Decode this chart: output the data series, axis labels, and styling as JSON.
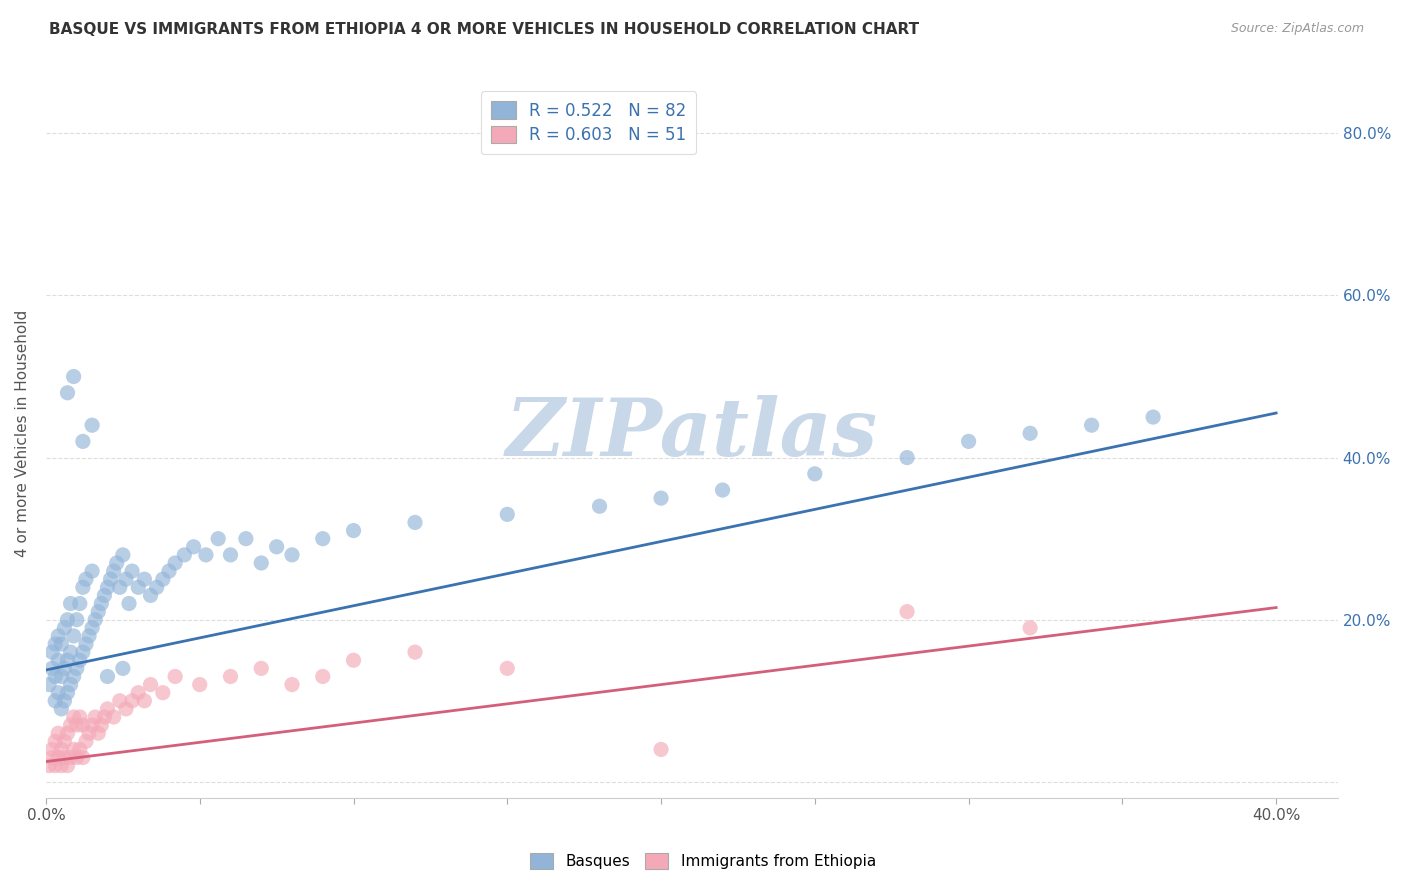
{
  "title": "BASQUE VS IMMIGRANTS FROM ETHIOPIA 4 OR MORE VEHICLES IN HOUSEHOLD CORRELATION CHART",
  "source": "Source: ZipAtlas.com",
  "ylabel": "4 or more Vehicles in Household",
  "xlim": [
    0.0,
    0.42
  ],
  "ylim": [
    -0.02,
    0.88
  ],
  "right_yticks": [
    0.0,
    0.2,
    0.4,
    0.6,
    0.8
  ],
  "right_yticklabels": [
    "",
    "20.0%",
    "40.0%",
    "60.0%",
    "80.0%"
  ],
  "xticks": [
    0.0,
    0.4
  ],
  "xticklabels": [
    "0.0%",
    "40.0%"
  ],
  "legend_r1": "0.522",
  "legend_n1": "82",
  "legend_r2": "0.603",
  "legend_n2": "51",
  "color_blue": "#92B4D8",
  "color_pink": "#F4A9B8",
  "color_blue_line": "#3B72B0",
  "color_pink_line": "#D45F7A",
  "blue_scatter_x": [
    0.001,
    0.002,
    0.002,
    0.003,
    0.003,
    0.003,
    0.004,
    0.004,
    0.004,
    0.005,
    0.005,
    0.005,
    0.006,
    0.006,
    0.006,
    0.007,
    0.007,
    0.007,
    0.008,
    0.008,
    0.008,
    0.009,
    0.009,
    0.01,
    0.01,
    0.011,
    0.011,
    0.012,
    0.012,
    0.013,
    0.013,
    0.014,
    0.015,
    0.015,
    0.016,
    0.017,
    0.018,
    0.019,
    0.02,
    0.021,
    0.022,
    0.023,
    0.024,
    0.025,
    0.026,
    0.027,
    0.028,
    0.03,
    0.032,
    0.034,
    0.036,
    0.038,
    0.04,
    0.042,
    0.045,
    0.048,
    0.052,
    0.056,
    0.06,
    0.065,
    0.07,
    0.075,
    0.08,
    0.09,
    0.1,
    0.12,
    0.15,
    0.18,
    0.2,
    0.22,
    0.25,
    0.28,
    0.3,
    0.32,
    0.34,
    0.36,
    0.007,
    0.009,
    0.012,
    0.015,
    0.02,
    0.025
  ],
  "blue_scatter_y": [
    0.12,
    0.14,
    0.16,
    0.1,
    0.13,
    0.17,
    0.11,
    0.15,
    0.18,
    0.09,
    0.13,
    0.17,
    0.1,
    0.14,
    0.19,
    0.11,
    0.15,
    0.2,
    0.12,
    0.16,
    0.22,
    0.13,
    0.18,
    0.14,
    0.2,
    0.15,
    0.22,
    0.16,
    0.24,
    0.17,
    0.25,
    0.18,
    0.19,
    0.26,
    0.2,
    0.21,
    0.22,
    0.23,
    0.24,
    0.25,
    0.26,
    0.27,
    0.24,
    0.28,
    0.25,
    0.22,
    0.26,
    0.24,
    0.25,
    0.23,
    0.24,
    0.25,
    0.26,
    0.27,
    0.28,
    0.29,
    0.28,
    0.3,
    0.28,
    0.3,
    0.27,
    0.29,
    0.28,
    0.3,
    0.31,
    0.32,
    0.33,
    0.34,
    0.35,
    0.36,
    0.38,
    0.4,
    0.42,
    0.43,
    0.44,
    0.45,
    0.48,
    0.5,
    0.42,
    0.44,
    0.13,
    0.14
  ],
  "pink_scatter_x": [
    0.001,
    0.002,
    0.002,
    0.003,
    0.003,
    0.004,
    0.004,
    0.005,
    0.005,
    0.006,
    0.006,
    0.007,
    0.007,
    0.008,
    0.008,
    0.009,
    0.009,
    0.01,
    0.01,
    0.011,
    0.011,
    0.012,
    0.012,
    0.013,
    0.014,
    0.015,
    0.016,
    0.017,
    0.018,
    0.019,
    0.02,
    0.022,
    0.024,
    0.026,
    0.028,
    0.03,
    0.032,
    0.034,
    0.038,
    0.042,
    0.05,
    0.06,
    0.07,
    0.08,
    0.09,
    0.1,
    0.12,
    0.15,
    0.2,
    0.28,
    0.32
  ],
  "pink_scatter_y": [
    0.02,
    0.03,
    0.04,
    0.02,
    0.05,
    0.03,
    0.06,
    0.02,
    0.04,
    0.03,
    0.05,
    0.02,
    0.06,
    0.03,
    0.07,
    0.04,
    0.08,
    0.03,
    0.07,
    0.04,
    0.08,
    0.03,
    0.07,
    0.05,
    0.06,
    0.07,
    0.08,
    0.06,
    0.07,
    0.08,
    0.09,
    0.08,
    0.1,
    0.09,
    0.1,
    0.11,
    0.1,
    0.12,
    0.11,
    0.13,
    0.12,
    0.13,
    0.14,
    0.12,
    0.13,
    0.15,
    0.16,
    0.14,
    0.04,
    0.21,
    0.19
  ],
  "blue_trend": [
    0.0,
    0.4,
    0.138,
    0.455
  ],
  "pink_trend": [
    0.0,
    0.4,
    0.025,
    0.215
  ],
  "watermark": "ZIPatlas",
  "watermark_color": "#C8D8E8",
  "grid_color": "#DDDDDD",
  "background_color": "#FFFFFF",
  "title_color": "#333333",
  "source_color": "#999999",
  "axis_color": "#555555"
}
